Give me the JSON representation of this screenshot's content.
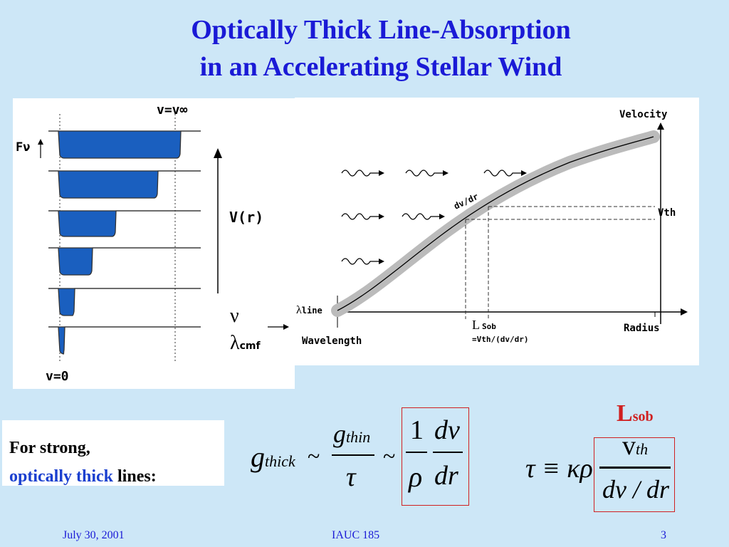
{
  "title": {
    "line1": "Optically Thick Line-Absorption",
    "line2": "in an Accelerating Stellar Wind"
  },
  "left_figure": {
    "top_label": "v=v∞",
    "flux_label": "Fν",
    "vr_label": "V(r)",
    "nu_label": "ν",
    "lambda_label": "λ",
    "lambda_sub": "cmf",
    "bottom_label": "v=0",
    "absorption_color": "#1a5fbf"
  },
  "right_figure": {
    "y_axis_label": "Velocity",
    "x_axis_label": "Radius",
    "wavelength_label": "Wavelength",
    "lambda_line_label": "λ",
    "lambda_line_sub": "line",
    "slope_label": "dv/dr",
    "vth_label": "Vth",
    "lsob_label": "L",
    "lsob_sub": "Sob",
    "lsob_def": "=Vth/(dv/dr)"
  },
  "strong_lines": {
    "line1": "For strong,",
    "line2_colored": "optically thick",
    "line2_rest": " lines:"
  },
  "equation1": {
    "g_thick": "g",
    "thick_sub": "thick",
    "tilde1": "~",
    "g_thin": "g",
    "thin_sub": "thin",
    "tau": "τ",
    "tilde2": "~",
    "one": "1",
    "rho": "ρ",
    "dv": "dv",
    "dr": "dr"
  },
  "equation2": {
    "lsob_title": "L",
    "lsob_title_sub": "sob",
    "lhs": "τ ≡ κρ",
    "v": "v",
    "v_sub": "th",
    "denominator": "dv / dr"
  },
  "footer": {
    "date": "July 30, 2001",
    "event": "IAUC 185",
    "page": "3"
  },
  "colors": {
    "title": "#1a1ad6",
    "background": "#cde7f7",
    "red": "#d02020",
    "accent_blue": "#1a3fcf"
  }
}
